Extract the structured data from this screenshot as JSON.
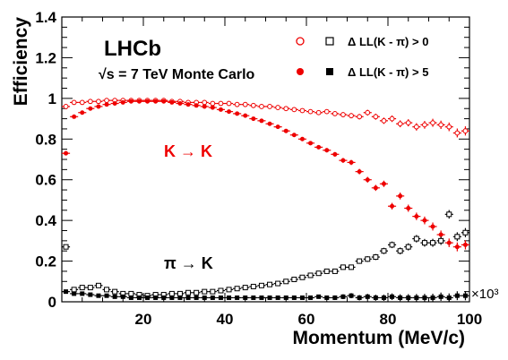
{
  "chart_data": {
    "type": "scatter",
    "title": "LHCb",
    "subtitle": "√s = 7 TeV Monte Carlo",
    "xlabel": "Momentum (MeV/c)",
    "x_multiplier": "×10³",
    "ylabel": "Efficiency",
    "xlim": [
      0,
      100
    ],
    "ylim": [
      0,
      1.4
    ],
    "x_ticks": [
      "20",
      "40",
      "60",
      "80",
      "100"
    ],
    "y_ticks": [
      "0",
      "0.2",
      "0.4",
      "0.6",
      "0.8",
      "1",
      "1.2",
      "1.4"
    ],
    "grid": false,
    "legend_position": "top-right",
    "annotations": [
      {
        "text": "K → K",
        "color": "#ee0000",
        "near": [
          21,
          0.72
        ]
      },
      {
        "text": "π → K",
        "color": "#000000",
        "near": [
          21,
          0.18
        ]
      }
    ],
    "series": [
      {
        "name": "Δ LL(K - π) > 0",
        "kind": "K→K",
        "marker": "open-circle",
        "color": "#ee0000",
        "x": [
          1,
          3,
          5,
          7,
          9,
          11,
          13,
          15,
          17,
          19,
          21,
          23,
          25,
          27,
          29,
          31,
          33,
          35,
          37,
          39,
          41,
          43,
          45,
          47,
          49,
          51,
          53,
          55,
          57,
          59,
          61,
          63,
          65,
          67,
          69,
          71,
          73,
          75,
          77,
          79,
          81,
          83,
          85,
          87,
          89,
          91,
          93,
          95,
          97,
          99
        ],
        "y": [
          0.96,
          0.98,
          0.98,
          0.985,
          0.985,
          0.99,
          0.99,
          0.99,
          0.99,
          0.99,
          0.99,
          0.99,
          0.99,
          0.985,
          0.985,
          0.98,
          0.98,
          0.98,
          0.975,
          0.975,
          0.975,
          0.97,
          0.97,
          0.965,
          0.96,
          0.96,
          0.955,
          0.95,
          0.945,
          0.94,
          0.935,
          0.93,
          0.935,
          0.925,
          0.92,
          0.915,
          0.91,
          0.93,
          0.91,
          0.89,
          0.9,
          0.875,
          0.88,
          0.86,
          0.87,
          0.88,
          0.87,
          0.86,
          0.83,
          0.84
        ]
      },
      {
        "name": "Δ LL(K - π) > 5",
        "kind": "K→K",
        "marker": "filled-circle",
        "color": "#ee0000",
        "x": [
          1,
          3,
          5,
          7,
          9,
          11,
          13,
          15,
          17,
          19,
          21,
          23,
          25,
          27,
          29,
          31,
          33,
          35,
          37,
          39,
          41,
          43,
          45,
          47,
          49,
          51,
          53,
          55,
          57,
          59,
          61,
          63,
          65,
          67,
          69,
          71,
          73,
          75,
          77,
          79,
          81,
          83,
          85,
          87,
          89,
          91,
          93,
          95,
          97,
          99
        ],
        "y": [
          0.73,
          0.91,
          0.93,
          0.95,
          0.96,
          0.97,
          0.975,
          0.98,
          0.985,
          0.985,
          0.985,
          0.985,
          0.985,
          0.98,
          0.975,
          0.97,
          0.965,
          0.96,
          0.955,
          0.945,
          0.935,
          0.925,
          0.915,
          0.9,
          0.89,
          0.875,
          0.86,
          0.84,
          0.82,
          0.8,
          0.78,
          0.76,
          0.745,
          0.725,
          0.695,
          0.685,
          0.64,
          0.6,
          0.56,
          0.58,
          0.47,
          0.52,
          0.46,
          0.42,
          0.4,
          0.37,
          0.33,
          0.29,
          0.27,
          0.28
        ]
      },
      {
        "name": "Δ LL(K - π) > 0",
        "kind": "π→K",
        "marker": "open-square",
        "color": "#000000",
        "x": [
          1,
          3,
          5,
          7,
          9,
          11,
          13,
          15,
          17,
          19,
          21,
          23,
          25,
          27,
          29,
          31,
          33,
          35,
          37,
          39,
          41,
          43,
          45,
          47,
          49,
          51,
          53,
          55,
          57,
          59,
          61,
          63,
          65,
          67,
          69,
          71,
          73,
          75,
          77,
          79,
          81,
          83,
          85,
          87,
          89,
          91,
          93,
          95,
          97,
          99
        ],
        "y": [
          0.27,
          0.06,
          0.07,
          0.07,
          0.08,
          0.06,
          0.05,
          0.04,
          0.04,
          0.035,
          0.03,
          0.035,
          0.035,
          0.04,
          0.04,
          0.045,
          0.045,
          0.05,
          0.05,
          0.055,
          0.06,
          0.065,
          0.07,
          0.075,
          0.08,
          0.085,
          0.09,
          0.1,
          0.11,
          0.12,
          0.13,
          0.14,
          0.15,
          0.15,
          0.17,
          0.17,
          0.2,
          0.21,
          0.22,
          0.25,
          0.28,
          0.25,
          0.27,
          0.31,
          0.29,
          0.29,
          0.3,
          0.43,
          0.32,
          0.34
        ]
      },
      {
        "name": "Δ LL(K - π) > 5",
        "kind": "π→K",
        "marker": "filled-square",
        "color": "#000000",
        "x": [
          1,
          3,
          5,
          7,
          9,
          11,
          13,
          15,
          17,
          19,
          21,
          23,
          25,
          27,
          29,
          31,
          33,
          35,
          37,
          39,
          41,
          43,
          45,
          47,
          49,
          51,
          53,
          55,
          57,
          59,
          61,
          63,
          65,
          67,
          69,
          71,
          73,
          75,
          77,
          79,
          81,
          83,
          85,
          87,
          89,
          91,
          93,
          95,
          97,
          99
        ],
        "y": [
          0.05,
          0.04,
          0.04,
          0.035,
          0.03,
          0.03,
          0.025,
          0.025,
          0.02,
          0.02,
          0.02,
          0.02,
          0.02,
          0.02,
          0.02,
          0.02,
          0.02,
          0.02,
          0.02,
          0.02,
          0.02,
          0.02,
          0.02,
          0.02,
          0.02,
          0.02,
          0.02,
          0.02,
          0.02,
          0.02,
          0.02,
          0.025,
          0.02,
          0.02,
          0.025,
          0.03,
          0.02,
          0.025,
          0.02,
          0.02,
          0.025,
          0.02,
          0.02,
          0.02,
          0.02,
          0.02,
          0.025,
          0.02,
          0.03,
          0.03
        ]
      }
    ]
  }
}
